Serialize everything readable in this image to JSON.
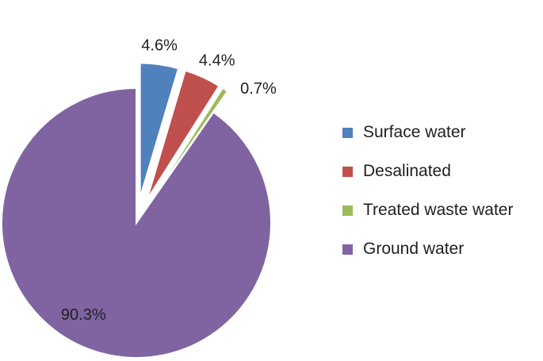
{
  "chart_data": {
    "type": "pie",
    "title": "",
    "slices": [
      {
        "label": "Surface water",
        "value": 4.6,
        "value_label": "4.6%",
        "color": "#4f81bd",
        "exploded": true
      },
      {
        "label": "Desalinated",
        "value": 4.4,
        "value_label": "4.4%",
        "color": "#c0504d",
        "exploded": true
      },
      {
        "label": "Treated waste water",
        "value": 0.7,
        "value_label": "0.7%",
        "color": "#9bbb59",
        "exploded": true
      },
      {
        "label": "Ground water",
        "value": 90.3,
        "value_label": "90.3%",
        "color": "#8064a2",
        "exploded": false
      }
    ],
    "legend_position": "right"
  }
}
